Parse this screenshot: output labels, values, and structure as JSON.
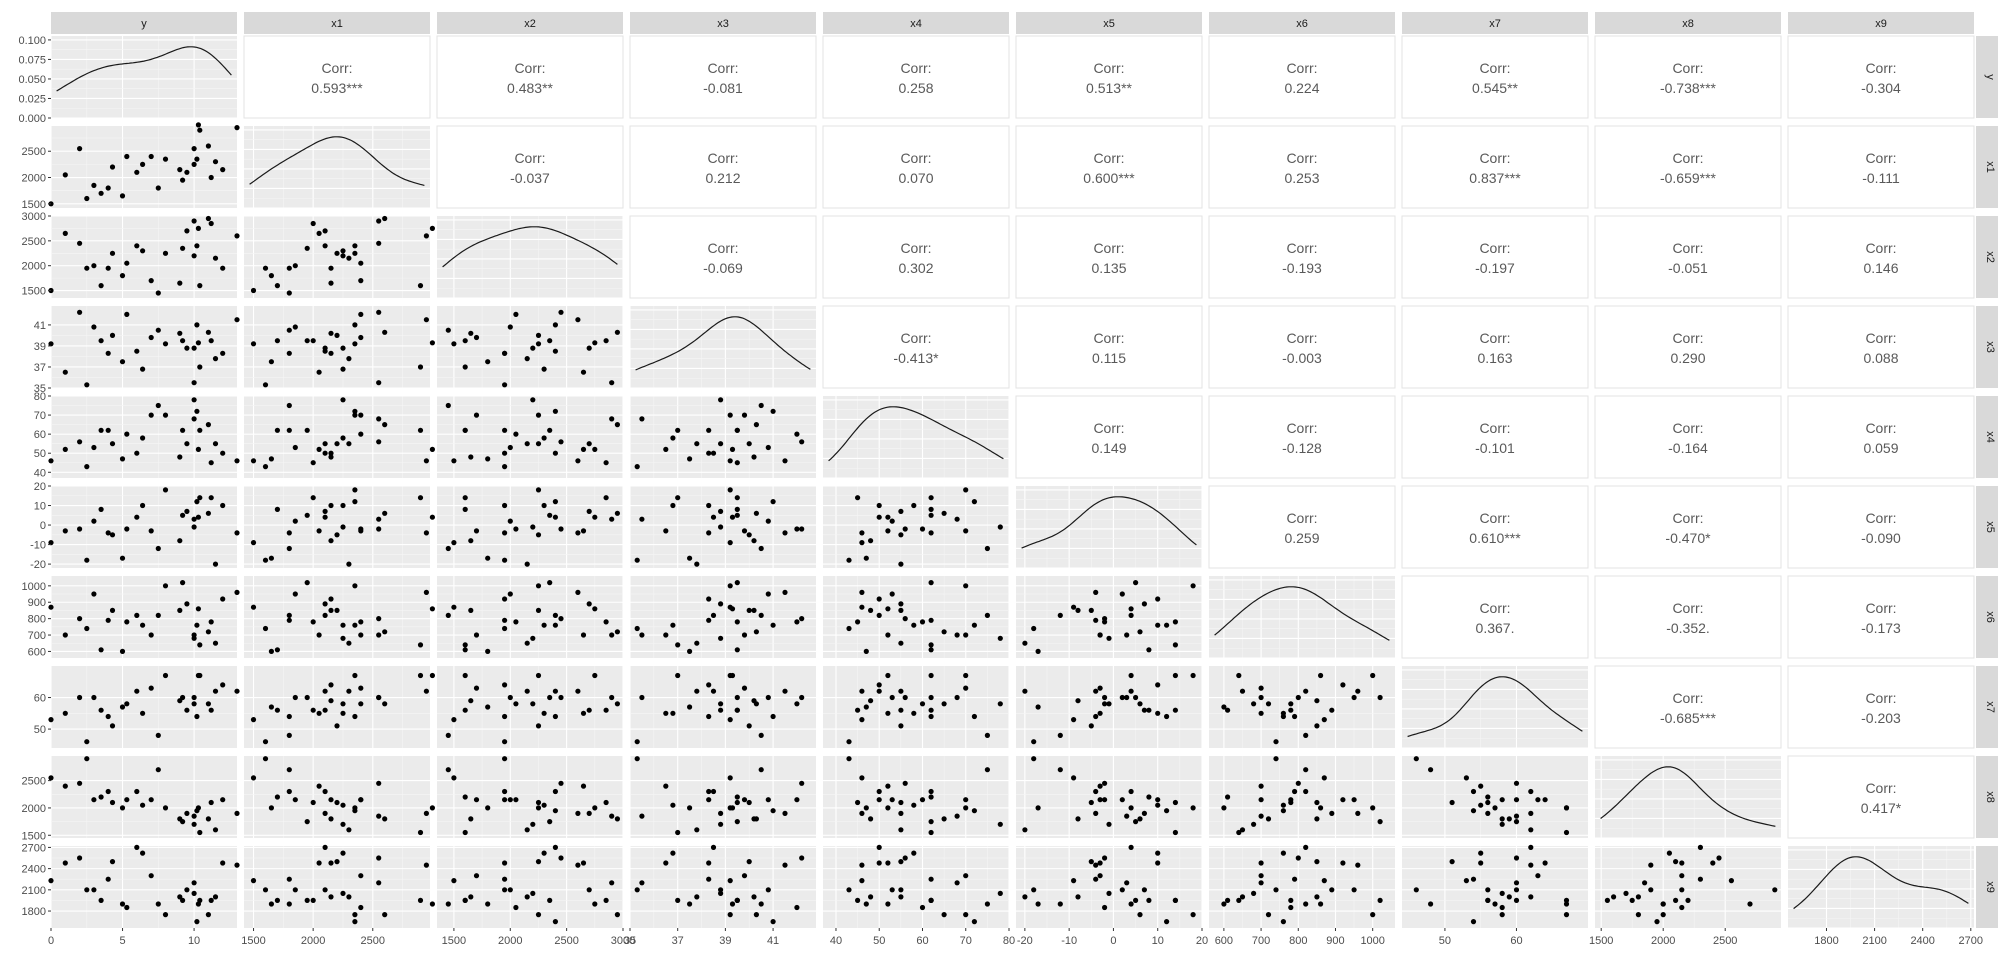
{
  "chart_data": {
    "type": "scatter-matrix",
    "variables": [
      "y",
      "x1",
      "x2",
      "x3",
      "x4",
      "x5",
      "x6",
      "x7",
      "x8",
      "x9"
    ],
    "ranges": {
      "y": [
        0,
        13
      ],
      "x1": [
        1420,
        2980
      ],
      "x2": [
        1350,
        3000
      ],
      "x3": [
        35,
        42.8
      ],
      "x4": [
        37,
        80
      ],
      "x5": [
        -22,
        20
      ],
      "x6": [
        560,
        1060
      ],
      "x7": [
        44,
        70
      ],
      "x8": [
        1450,
        2950
      ],
      "x9": [
        1560,
        2720
      ]
    },
    "ticks": {
      "y": [
        0,
        5,
        10
      ],
      "x1": [
        1500,
        2000,
        2500,
        3000
      ],
      "x2": [
        1500,
        2000,
        2500,
        3000
      ],
      "x3": [
        35,
        37,
        39,
        41
      ],
      "x4": [
        40,
        50,
        60,
        70,
        80
      ],
      "x5": [
        -20,
        -10,
        0,
        10,
        20
      ],
      "x6": [
        600,
        700,
        800,
        900,
        1000
      ],
      "x7": [
        50,
        60
      ],
      "x8": [
        1500,
        2000,
        2500
      ],
      "x9": [
        1800,
        2100,
        2400,
        2700
      ]
    },
    "tick_labels": {
      "y": [
        "0",
        "5",
        "10"
      ],
      "x1": [
        "1500",
        "2000",
        "2500",
        "3000"
      ],
      "x2": [
        "1500",
        "2000",
        "2500",
        "3000"
      ],
      "x3": [
        "35",
        "37",
        "39",
        "41"
      ],
      "x4": [
        "40",
        "50",
        "60",
        "70",
        "80"
      ],
      "x5": [
        "-20",
        "-10",
        "0",
        "10",
        "20"
      ],
      "x6": [
        "600",
        "700",
        "800",
        "900",
        "1000"
      ],
      "x7": [
        "50",
        "60"
      ],
      "x8": [
        "1500",
        "2000",
        "2500"
      ],
      "x9": [
        "1800",
        "2100",
        "2400",
        "2700"
      ]
    },
    "density_axis": {
      "ticks": [
        0,
        0.025,
        0.05,
        0.075,
        0.1
      ],
      "labels": [
        "0.000",
        "0.025",
        "0.050",
        "0.075",
        "0.100"
      ],
      "range": [
        0,
        0.105
      ]
    },
    "correlations": [
      {
        "row": "y",
        "col": "x1",
        "label": "Corr:",
        "value": "0.593***"
      },
      {
        "row": "y",
        "col": "x2",
        "label": "Corr:",
        "value": "0.483**"
      },
      {
        "row": "y",
        "col": "x3",
        "label": "Corr:",
        "value": "-0.081"
      },
      {
        "row": "y",
        "col": "x4",
        "label": "Corr:",
        "value": "0.258"
      },
      {
        "row": "y",
        "col": "x5",
        "label": "Corr:",
        "value": "0.513**"
      },
      {
        "row": "y",
        "col": "x6",
        "label": "Corr:",
        "value": "0.224"
      },
      {
        "row": "y",
        "col": "x7",
        "label": "Corr:",
        "value": "0.545**"
      },
      {
        "row": "y",
        "col": "x8",
        "label": "Corr:",
        "value": "-0.738***"
      },
      {
        "row": "y",
        "col": "x9",
        "label": "Corr:",
        "value": "-0.304"
      },
      {
        "row": "x1",
        "col": "x2",
        "label": "Corr:",
        "value": "-0.037"
      },
      {
        "row": "x1",
        "col": "x3",
        "label": "Corr:",
        "value": "0.212"
      },
      {
        "row": "x1",
        "col": "x4",
        "label": "Corr:",
        "value": "0.070"
      },
      {
        "row": "x1",
        "col": "x5",
        "label": "Corr:",
        "value": "0.600***"
      },
      {
        "row": "x1",
        "col": "x6",
        "label": "Corr:",
        "value": "0.253"
      },
      {
        "row": "x1",
        "col": "x7",
        "label": "Corr:",
        "value": "0.837***"
      },
      {
        "row": "x1",
        "col": "x8",
        "label": "Corr:",
        "value": "-0.659***"
      },
      {
        "row": "x1",
        "col": "x9",
        "label": "Corr:",
        "value": "-0.111"
      },
      {
        "row": "x2",
        "col": "x3",
        "label": "Corr:",
        "value": "-0.069"
      },
      {
        "row": "x2",
        "col": "x4",
        "label": "Corr:",
        "value": "0.302"
      },
      {
        "row": "x2",
        "col": "x5",
        "label": "Corr:",
        "value": "0.135"
      },
      {
        "row": "x2",
        "col": "x6",
        "label": "Corr:",
        "value": "-0.193"
      },
      {
        "row": "x2",
        "col": "x7",
        "label": "Corr:",
        "value": "-0.197"
      },
      {
        "row": "x2",
        "col": "x8",
        "label": "Corr:",
        "value": "-0.051"
      },
      {
        "row": "x2",
        "col": "x9",
        "label": "Corr:",
        "value": "0.146"
      },
      {
        "row": "x3",
        "col": "x4",
        "label": "Corr:",
        "value": "-0.413*"
      },
      {
        "row": "x3",
        "col": "x5",
        "label": "Corr:",
        "value": "0.115"
      },
      {
        "row": "x3",
        "col": "x6",
        "label": "Corr:",
        "value": "-0.003"
      },
      {
        "row": "x3",
        "col": "x7",
        "label": "Corr:",
        "value": "0.163"
      },
      {
        "row": "x3",
        "col": "x8",
        "label": "Corr:",
        "value": "0.290"
      },
      {
        "row": "x3",
        "col": "x9",
        "label": "Corr:",
        "value": "0.088"
      },
      {
        "row": "x4",
        "col": "x5",
        "label": "Corr:",
        "value": "0.149"
      },
      {
        "row": "x4",
        "col": "x6",
        "label": "Corr:",
        "value": "-0.128"
      },
      {
        "row": "x4",
        "col": "x7",
        "label": "Corr:",
        "value": "-0.101"
      },
      {
        "row": "x4",
        "col": "x8",
        "label": "Corr:",
        "value": "-0.164"
      },
      {
        "row": "x4",
        "col": "x9",
        "label": "Corr:",
        "value": "0.059"
      },
      {
        "row": "x5",
        "col": "x6",
        "label": "Corr:",
        "value": "0.259"
      },
      {
        "row": "x5",
        "col": "x7",
        "label": "Corr:",
        "value": "0.610***"
      },
      {
        "row": "x5",
        "col": "x8",
        "label": "Corr:",
        "value": "-0.470*"
      },
      {
        "row": "x5",
        "col": "x9",
        "label": "Corr:",
        "value": "-0.090"
      },
      {
        "row": "x6",
        "col": "x7",
        "label": "Corr:",
        "value": "0.367."
      },
      {
        "row": "x6",
        "col": "x8",
        "label": "Corr:",
        "value": "-0.352."
      },
      {
        "row": "x6",
        "col": "x9",
        "label": "Corr:",
        "value": "-0.173"
      },
      {
        "row": "x7",
        "col": "x8",
        "label": "Corr:",
        "value": "-0.685***"
      },
      {
        "row": "x7",
        "col": "x9",
        "label": "Corr:",
        "value": "-0.203"
      },
      {
        "row": "x8",
        "col": "x9",
        "label": "Corr:",
        "value": "0.417*"
      }
    ],
    "observations": [
      {
        "y": 0,
        "x1": 1500,
        "x2": 1500,
        "x3": 39.2,
        "x4": 46,
        "x5": -9,
        "x6": 870,
        "x7": 53,
        "x8": 2550,
        "x9": 2230
      },
      {
        "y": 1,
        "x1": 2050,
        "x2": 2650,
        "x3": 36.5,
        "x4": 52,
        "x5": -3,
        "x6": 700,
        "x7": 55,
        "x8": 2400,
        "x9": 2480
      },
      {
        "y": 2,
        "x1": 2550,
        "x2": 2450,
        "x3": 42.2,
        "x4": 56,
        "x5": -2,
        "x6": 800,
        "x7": 60,
        "x8": 2450,
        "x9": 2550
      },
      {
        "y": 3,
        "x1": 1850,
        "x2": 2000,
        "x3": 40.8,
        "x4": 53,
        "x5": 2,
        "x6": 950,
        "x7": 60,
        "x8": 2150,
        "x9": 2100
      },
      {
        "y": 3.5,
        "x1": 1700,
        "x2": 1600,
        "x3": 39.5,
        "x4": 62,
        "x5": 8,
        "x6": 610,
        "x7": 56,
        "x8": 2200,
        "x9": 1950
      },
      {
        "y": 4,
        "x1": 1800,
        "x2": 1950,
        "x3": 38.3,
        "x4": 62,
        "x5": -4,
        "x6": 790,
        "x7": 54,
        "x8": 2300,
        "x9": 2250
      },
      {
        "y": 4.3,
        "x1": 2200,
        "x2": 2250,
        "x3": 40,
        "x4": 55,
        "x5": -5,
        "x6": 850,
        "x7": 51,
        "x8": 2100,
        "x9": 2500
      },
      {
        "y": 5,
        "x1": 1650,
        "x2": 1800,
        "x3": 37.5,
        "x4": 47,
        "x5": -17,
        "x6": 600,
        "x7": 57,
        "x8": 2000,
        "x9": 1900
      },
      {
        "y": 5.3,
        "x1": 2400,
        "x2": 2050,
        "x3": 42,
        "x4": 60,
        "x5": -2,
        "x6": 780,
        "x7": 58,
        "x8": 2150,
        "x9": 1850
      },
      {
        "y": 6,
        "x1": 2100,
        "x2": 2400,
        "x3": 38.5,
        "x4": 50,
        "x5": 4,
        "x6": 820,
        "x7": 62,
        "x8": 2300,
        "x9": 2700
      },
      {
        "y": 6.4,
        "x1": 2250,
        "x2": 2300,
        "x3": 36.8,
        "x4": 58,
        "x5": 10,
        "x6": 760,
        "x7": 55,
        "x8": 2050,
        "x9": 2620
      },
      {
        "y": 7,
        "x1": 2400,
        "x2": 1700,
        "x3": 39.8,
        "x4": 70,
        "x5": -3,
        "x6": 700,
        "x7": 63,
        "x8": 2150,
        "x9": 2300
      },
      {
        "y": 8,
        "x1": 2350,
        "x2": 2250,
        "x3": 39.2,
        "x4": 70,
        "x5": 18,
        "x6": 1000,
        "x7": 67,
        "x8": 2000,
        "x9": 1750
      },
      {
        "y": 9,
        "x1": 2150,
        "x2": 1650,
        "x3": 40.2,
        "x4": 48,
        "x5": -8,
        "x6": 850,
        "x7": 59,
        "x8": 1800,
        "x9": 2000
      },
      {
        "y": 9.2,
        "x1": 1950,
        "x2": 2350,
        "x3": 39.5,
        "x4": 62,
        "x5": 5,
        "x6": 1020,
        "x7": 60,
        "x8": 1750,
        "x9": 1950
      },
      {
        "y": 9.5,
        "x1": 2100,
        "x2": 2700,
        "x3": 38.8,
        "x4": 55,
        "x5": 7,
        "x6": 890,
        "x7": 56,
        "x8": 1900,
        "x9": 2100
      },
      {
        "y": 10,
        "x1": 2250,
        "x2": 2200,
        "x3": 38.8,
        "x4": 78,
        "x5": -1,
        "x6": 680,
        "x7": 58,
        "x8": 1700,
        "x9": 2050
      },
      {
        "y": 10,
        "x1": 2550,
        "x2": 2900,
        "x3": 35.5,
        "x4": 68,
        "x5": 3,
        "x6": 700,
        "x7": 60,
        "x8": 1850,
        "x9": 2200
      },
      {
        "y": 10.2,
        "x1": 2350,
        "x2": 2400,
        "x3": 41,
        "x4": 72,
        "x5": 12,
        "x6": 760,
        "x7": 54,
        "x8": 1950,
        "x9": 1650
      },
      {
        "y": 10.3,
        "x1": 3000,
        "x2": 2750,
        "x3": 39.3,
        "x4": 52,
        "x5": 4,
        "x6": 860,
        "x7": 67,
        "x8": 2000,
        "x9": 1900
      },
      {
        "y": 10.4,
        "x1": 2900,
        "x2": 1600,
        "x3": 37,
        "x4": 62,
        "x5": 14,
        "x6": 640,
        "x7": 67,
        "x8": 1550,
        "x9": 1950
      },
      {
        "y": 11,
        "x1": 2600,
        "x2": 2950,
        "x3": 40.3,
        "x4": 65,
        "x5": 6,
        "x6": 720,
        "x7": 58,
        "x8": 1800,
        "x9": 1750
      },
      {
        "y": 11.2,
        "x1": 2000,
        "x2": 2850,
        "x3": 39.5,
        "x4": 45,
        "x5": 14,
        "x6": 780,
        "x7": 56,
        "x8": 2100,
        "x9": 1950
      },
      {
        "y": 11.5,
        "x1": 2300,
        "x2": 2150,
        "x3": 37.8,
        "x4": 55,
        "x5": -20,
        "x6": 650,
        "x7": 62,
        "x8": 1600,
        "x9": 2000
      },
      {
        "y": 12,
        "x1": 2150,
        "x2": 1950,
        "x3": 38.3,
        "x4": 50,
        "x5": 10,
        "x6": 920,
        "x7": 64,
        "x8": 2150,
        "x9": 2480
      },
      {
        "y": 13,
        "x1": 2950,
        "x2": 2600,
        "x3": 41.5,
        "x4": 46,
        "x5": -4,
        "x6": 960,
        "x7": 62,
        "x8": 1900,
        "x9": 2450
      },
      {
        "y": 7.5,
        "x1": 1800,
        "x2": 1450,
        "x3": 40.5,
        "x4": 75,
        "x5": -12,
        "x6": 820,
        "x7": 48,
        "x8": 2700,
        "x9": 1900
      },
      {
        "y": 2.5,
        "x1": 1600,
        "x2": 1950,
        "x3": 35.3,
        "x4": 43,
        "x5": -18,
        "x6": 740,
        "x7": 46,
        "x8": 2900,
        "x9": 2100
      }
    ]
  }
}
